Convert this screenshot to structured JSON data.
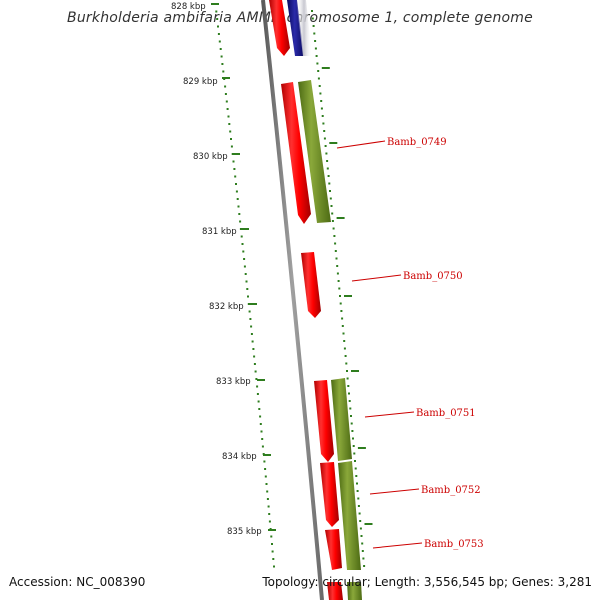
{
  "title": "Burkholderia ambifaria AMMD chromosome 1, complete genome",
  "accession": "Accession: NC_008390",
  "topology": "Topology: circular; Length: 3,556,545 bp; Genes: 3,281",
  "colors": {
    "gene_forward": "#ff0000",
    "gene_reverse": "#1a1a8c",
    "cds_track": "#6b8e23",
    "backbone": "#808080",
    "tick": "#2e7d1e",
    "label": "#cc0000"
  },
  "kbp_labels": [
    "828 kbp",
    "829 kbp",
    "830 kbp",
    "831 kbp",
    "832 kbp",
    "833 kbp",
    "834 kbp",
    "835 kbp"
  ],
  "gene_labels": [
    "Bamb_0749",
    "Bamb_0750",
    "Bamb_0751",
    "Bamb_0752",
    "Bamb_0753"
  ]
}
